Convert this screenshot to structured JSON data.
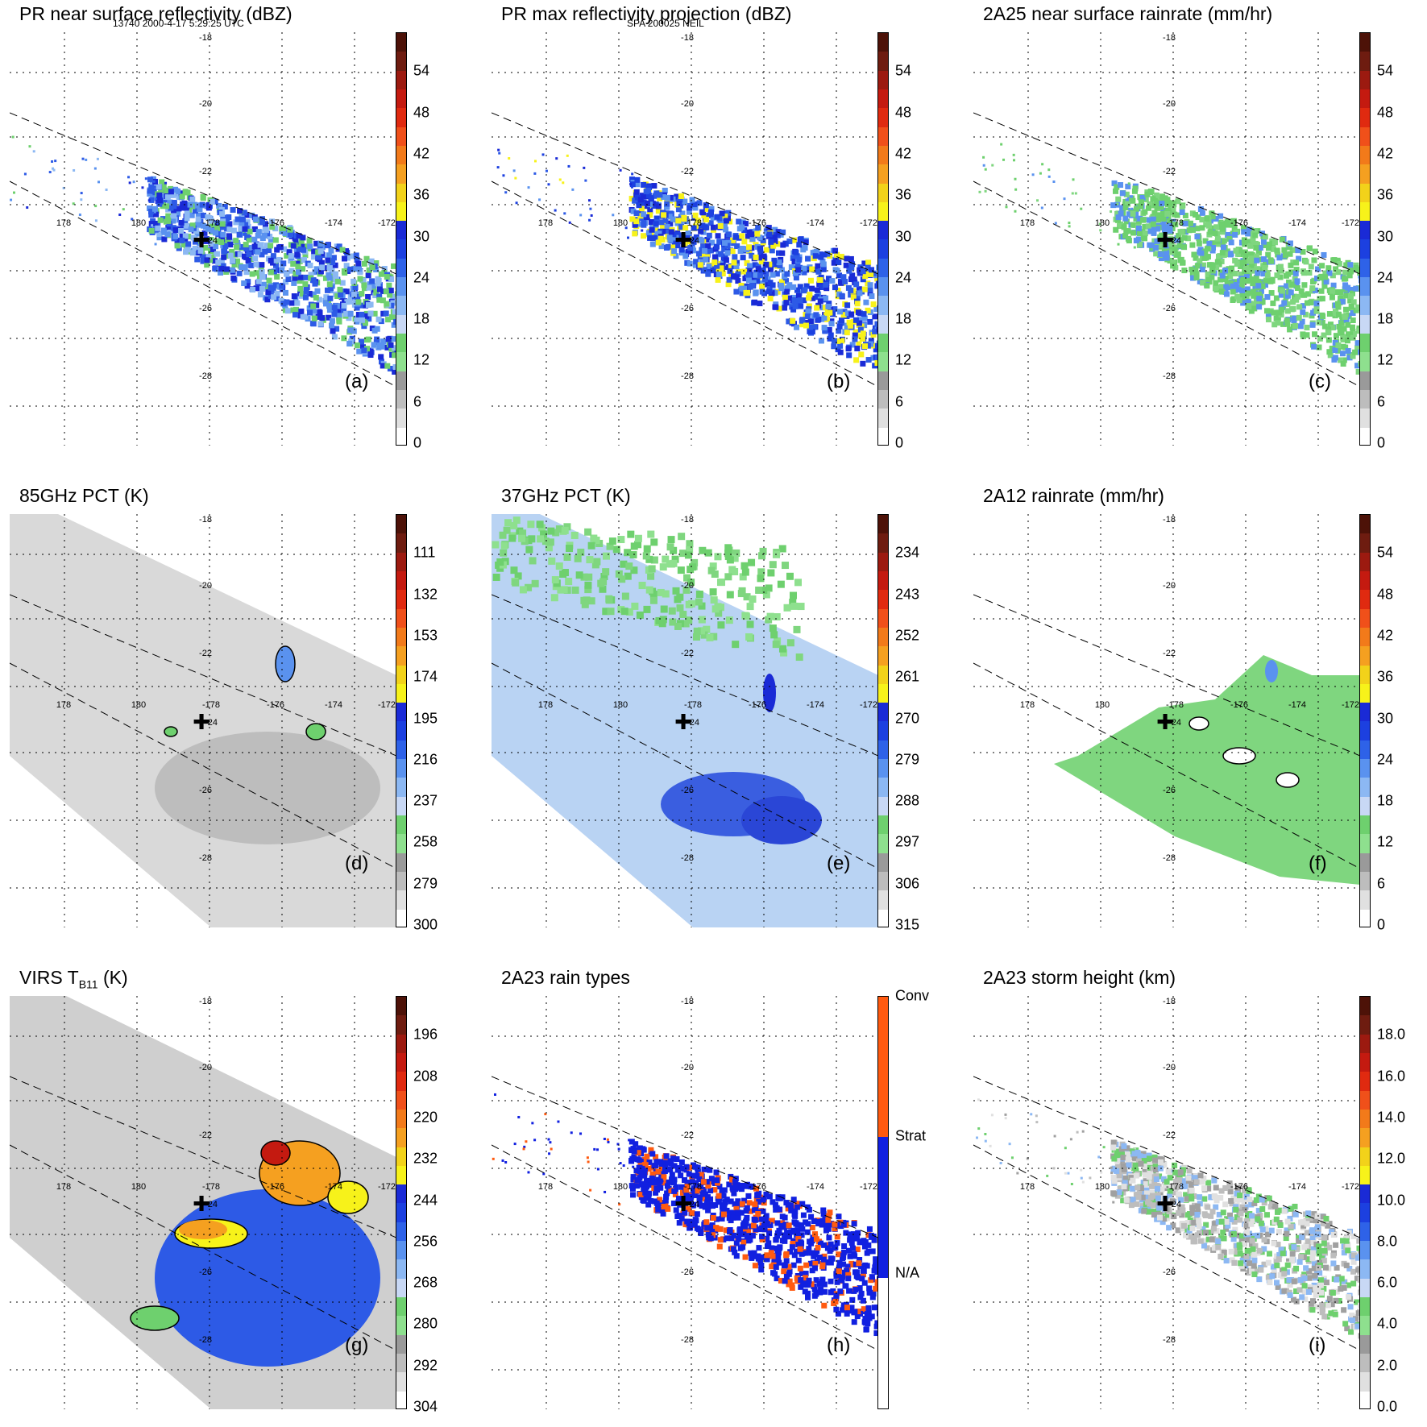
{
  "header": {
    "left": "13740 2000-4-17 5:29:25 UTC",
    "center": "SPA 200025 NEIL"
  },
  "chart_data": [
    {
      "id": "a",
      "type": "heatmap",
      "label": "(a)",
      "title": "PR near surface reflectivity (dBZ)",
      "colorbar": {
        "ticks": [
          "54",
          "48",
          "42",
          "36",
          "30",
          "24",
          "18",
          "12",
          "6",
          "0"
        ]
      },
      "swath": "pr",
      "lat_labels": [
        "-18",
        "-20",
        "-22",
        "-24",
        "-26",
        "-28"
      ],
      "lon_labels": [
        "178",
        "180",
        "-178",
        "-176",
        "-174",
        "-172"
      ]
    },
    {
      "id": "b",
      "type": "heatmap",
      "label": "(b)",
      "title": "PR max reflectivity projection (dBZ)",
      "colorbar": {
        "ticks": [
          "54",
          "48",
          "42",
          "36",
          "30",
          "24",
          "18",
          "12",
          "6",
          "0"
        ]
      },
      "swath": "pr",
      "lat_labels": [
        "-18",
        "-20",
        "-22",
        "-24",
        "-26",
        "-28"
      ],
      "lon_labels": [
        "178",
        "180",
        "-178",
        "-176",
        "-174",
        "-172"
      ]
    },
    {
      "id": "c",
      "type": "heatmap",
      "label": "(c)",
      "title": "2A25 near surface rainrate (mm/hr)",
      "colorbar": {
        "ticks": [
          "54",
          "48",
          "42",
          "36",
          "30",
          "24",
          "18",
          "12",
          "6",
          "0"
        ]
      },
      "swath": "pr",
      "lat_labels": [
        "-18",
        "-20",
        "-22",
        "-24",
        "-26",
        "-28"
      ],
      "lon_labels": [
        "178",
        "180",
        "-178",
        "-176",
        "-174",
        "-172"
      ]
    },
    {
      "id": "d",
      "type": "heatmap",
      "label": "(d)",
      "title": "85GHz PCT (K)",
      "colorbar": {
        "ticks": [
          "111",
          "132",
          "153",
          "174",
          "195",
          "216",
          "237",
          "258",
          "279",
          "300"
        ]
      },
      "swath": "tmi",
      "lat_labels": [
        "-18",
        "-20",
        "-22",
        "-24",
        "-26",
        "-28"
      ],
      "lon_labels": [
        "178",
        "180",
        "-178",
        "-176",
        "-174",
        "-172"
      ]
    },
    {
      "id": "e",
      "type": "heatmap",
      "label": "(e)",
      "title": "37GHz PCT (K)",
      "colorbar": {
        "ticks": [
          "234",
          "243",
          "252",
          "261",
          "270",
          "279",
          "288",
          "297",
          "306",
          "315"
        ]
      },
      "swath": "tmi",
      "lat_labels": [
        "-18",
        "-20",
        "-22",
        "-24",
        "-26",
        "-28"
      ],
      "lon_labels": [
        "178",
        "180",
        "-178",
        "-176",
        "-174",
        "-172"
      ]
    },
    {
      "id": "f",
      "type": "heatmap",
      "label": "(f)",
      "title": "2A12 rainrate (mm/hr)",
      "colorbar": {
        "ticks": [
          "54",
          "48",
          "42",
          "36",
          "30",
          "24",
          "18",
          "12",
          "6",
          "0"
        ]
      },
      "swath": "tmi",
      "lat_labels": [
        "-18",
        "-20",
        "-22",
        "-24",
        "-26",
        "-28"
      ],
      "lon_labels": [
        "178",
        "180",
        "-178",
        "-176",
        "-174",
        "-172"
      ]
    },
    {
      "id": "g",
      "type": "heatmap",
      "label": "(g)",
      "title": "VIRS T",
      "title_sub": "B11",
      "title_suffix": " (K)",
      "colorbar": {
        "ticks": [
          "196",
          "208",
          "220",
          "232",
          "244",
          "256",
          "268",
          "280",
          "292",
          "304"
        ]
      },
      "swath": "virs",
      "lat_labels": [
        "-18",
        "-20",
        "-22",
        "-24",
        "-26",
        "-28"
      ],
      "lon_labels": [
        "178",
        "180",
        "-178",
        "-176",
        "-174",
        "-172"
      ]
    },
    {
      "id": "h",
      "type": "heatmap",
      "label": "(h)",
      "title": "2A23 rain types",
      "colorbar": {
        "categories": [
          "Conv",
          "Strat",
          "N/A"
        ]
      },
      "swath": "pr",
      "lat_labels": [
        "-18",
        "-20",
        "-22",
        "-24",
        "-26",
        "-28"
      ],
      "lon_labels": [
        "178",
        "180",
        "-178",
        "-176",
        "-174",
        "-172"
      ]
    },
    {
      "id": "i",
      "type": "heatmap",
      "label": "(i)",
      "title": "2A23 storm height (km)",
      "colorbar": {
        "ticks": [
          "18.0",
          "16.0",
          "14.0",
          "12.0",
          "10.0",
          "8.0",
          "6.0",
          "4.0",
          "2.0",
          "0.0"
        ]
      },
      "swath": "pr",
      "lat_labels": [
        "-18",
        "-20",
        "-22",
        "-24",
        "-26",
        "-28"
      ],
      "lon_labels": [
        "178",
        "180",
        "-178",
        "-176",
        "-174",
        "-172"
      ]
    }
  ],
  "palettes": {
    "rain": [
      "#5a1510",
      "#8c1a12",
      "#c81a12",
      "#f03c14",
      "#f7811d",
      "#f5a623",
      "#f6e619",
      "#1a2fd6",
      "#2d5ae6",
      "#4b86ee",
      "#7eb3f5",
      "#b8cdf3",
      "#7fd67f",
      "#5ec45e",
      "#a0a0a0",
      "#c8c8c8",
      "#e6e6e6",
      "#ffffff"
    ],
    "strat": "#1120e0",
    "conv": "#ff5a10",
    "gray_bg": "#d4d4d4",
    "marker_color": "#000000"
  }
}
